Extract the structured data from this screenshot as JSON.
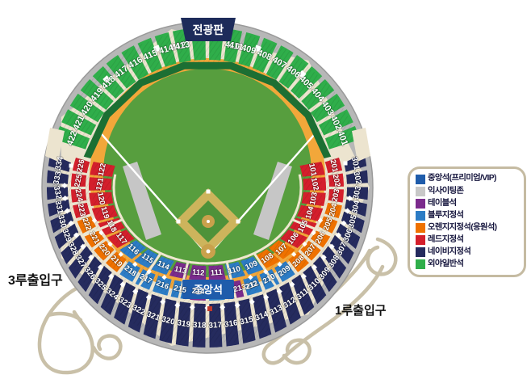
{
  "banners": {
    "scoreboard": "전광판",
    "home_center": "중앙석"
  },
  "entrances": {
    "third_base": "3루출입구",
    "first_base": "1루출입구"
  },
  "palette": {
    "red": "#d41f2c",
    "orange": "#ef7100",
    "blue": "#2c7cc5",
    "purple": "#7b2b8d",
    "navy": "#252b5e",
    "green": "#2fae4a",
    "vip": "#1f5cab",
    "gray_zone": "#c6c6c6",
    "rim": "#b7b7b7",
    "cream": "#ece4cf",
    "field_green": "#579e3e",
    "track_orange": "#f2a73a",
    "dark_green": "#1c6f33",
    "infield_tan": "#cdb45c",
    "infield_green": "#4e9239",
    "mound_tan": "#c9a14c",
    "banner_navy": "#1d2b5a",
    "glove": "#c9c0a8",
    "label_white": "#ffffff"
  },
  "legend": {
    "items": [
      {
        "label": "중앙석(프리미엄/VIP)",
        "color": "#1f5cab"
      },
      {
        "label": "익사이팅존",
        "color": "#c8c8c8"
      },
      {
        "label": "테이블석",
        "color": "#7b2b8d"
      },
      {
        "label": "블루지정석",
        "color": "#2c7cc5"
      },
      {
        "label": "오렌지지정석(응원석)",
        "color": "#ef7100"
      },
      {
        "label": "레드지정석",
        "color": "#d41f2c"
      },
      {
        "label": "네이비지정석",
        "color": "#252b5e"
      },
      {
        "label": "외야일반석",
        "color": "#2fae4a"
      }
    ]
  },
  "sections": {
    "ring100": [
      {
        "n": "101",
        "c": "red"
      },
      {
        "n": "102",
        "c": "red"
      },
      {
        "n": "103",
        "c": "red"
      },
      {
        "n": "104",
        "c": "red"
      },
      {
        "n": "105",
        "c": "red"
      },
      {
        "n": "106",
        "c": "red"
      },
      {
        "n": "107",
        "c": "orange"
      },
      {
        "n": "108",
        "c": "orange"
      },
      {
        "n": "109",
        "c": "blue"
      },
      {
        "n": "110",
        "c": "blue"
      },
      {
        "n": "111",
        "c": "purple"
      },
      {
        "n": "112",
        "c": "purple"
      },
      {
        "n": "113",
        "c": "purple"
      },
      {
        "n": "114",
        "c": "blue"
      },
      {
        "n": "115",
        "c": "blue"
      },
      {
        "n": "116",
        "c": "blue"
      },
      {
        "n": "117",
        "c": "red"
      },
      {
        "n": "118",
        "c": "red"
      },
      {
        "n": "119",
        "c": "red"
      },
      {
        "n": "120",
        "c": "red"
      },
      {
        "n": "121",
        "c": "red"
      },
      {
        "n": "122",
        "c": "red"
      }
    ],
    "ring200": [
      {
        "n": "201",
        "c": "red"
      },
      {
        "n": "202",
        "c": "red"
      },
      {
        "n": "203",
        "c": "red"
      },
      {
        "n": "204",
        "c": "orange"
      },
      {
        "n": "205",
        "c": "orange"
      },
      {
        "n": "206",
        "c": "orange"
      },
      {
        "n": "207",
        "c": "orange"
      },
      {
        "n": "208",
        "c": "orange"
      },
      {
        "n": "209",
        "c": "blue"
      },
      {
        "n": "210",
        "c": "blue"
      },
      {
        "n": "211",
        "c": "blue"
      },
      {
        "n": "212",
        "c": "purple"
      },
      {
        "n": "213",
        "c": "blue"
      },
      {
        "n": "214",
        "c": "purple"
      },
      {
        "n": "215",
        "c": "blue"
      },
      {
        "n": "216",
        "c": "blue"
      },
      {
        "n": "217",
        "c": "blue"
      },
      {
        "n": "218",
        "c": "blue"
      },
      {
        "n": "219",
        "c": "orange"
      },
      {
        "n": "220",
        "c": "orange"
      },
      {
        "n": "221",
        "c": "orange"
      },
      {
        "n": "222",
        "c": "orange"
      },
      {
        "n": "223",
        "c": "red"
      },
      {
        "n": "224",
        "c": "red"
      },
      {
        "n": "225",
        "c": "red"
      },
      {
        "n": "226",
        "c": "red"
      }
    ],
    "ring300": {
      "from": 301,
      "to": 334,
      "c": "navy"
    },
    "ring400": {
      "from": 401,
      "to": 422,
      "c": "green"
    }
  },
  "markers": {
    "outfield_gate_angles": [
      50,
      70,
      110,
      133
    ],
    "entry_squares": [
      [
        88,
        205
      ],
      [
        428,
        202
      ]
    ],
    "red_gate": [
      260,
      382
    ]
  }
}
